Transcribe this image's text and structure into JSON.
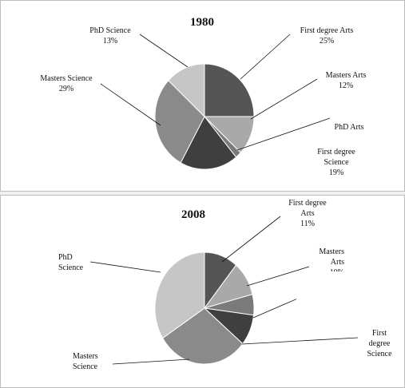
{
  "chart_data": [
    {
      "type": "pie",
      "title": "1980",
      "slices": [
        {
          "name": "First degree Arts",
          "value": 25,
          "color": "#555555",
          "label_lines": [
            "First degree Arts",
            "25%"
          ]
        },
        {
          "name": "Masters Arts",
          "value": 12,
          "color": "#a9a9a9",
          "label_lines": [
            "Masters Arts",
            "12%"
          ]
        },
        {
          "name": "PhD Arts",
          "value": 2,
          "color": "#7a7a7a",
          "label_lines": [
            "PhD Arts"
          ]
        },
        {
          "name": "First degree Science",
          "value": 19,
          "color": "#3f3f3f",
          "label_lines": [
            "First degree",
            "Science",
            "19%"
          ]
        },
        {
          "name": "Masters Science",
          "value": 29,
          "color": "#8a8a8a",
          "label_lines": [
            "Masters Science",
            "29%"
          ]
        },
        {
          "name": "PhD Science",
          "value": 13,
          "color": "#c6c6c6",
          "label_lines": [
            "PhD Science",
            "13%"
          ]
        }
      ]
    },
    {
      "type": "pie",
      "title": "2008",
      "slices": [
        {
          "name": "First degree Arts",
          "value": 11,
          "color": "#555555",
          "label_lines": [
            "First degree",
            "Arts",
            "11%"
          ]
        },
        {
          "name": "Masters Arts",
          "value": 10,
          "color": "#a9a9a9",
          "label_lines": [
            "Masters",
            "Arts",
            "10%"
          ]
        },
        {
          "name": "PhD Arts",
          "value": 6,
          "color": "#7a7a7a",
          "label_lines": []
        },
        {
          "name": "First degree Science",
          "value": 9,
          "color": "#3f3f3f",
          "label_lines": [
            "First",
            "degree",
            "Science"
          ]
        },
        {
          "name": "Masters Science",
          "value": 30,
          "color": "#8a8a8a",
          "label_lines": [
            "Masters",
            "Science"
          ]
        },
        {
          "name": "PhD Science",
          "value": 34,
          "color": "#c6c6c6",
          "label_lines": [
            "PhD",
            "Science"
          ]
        }
      ]
    }
  ]
}
